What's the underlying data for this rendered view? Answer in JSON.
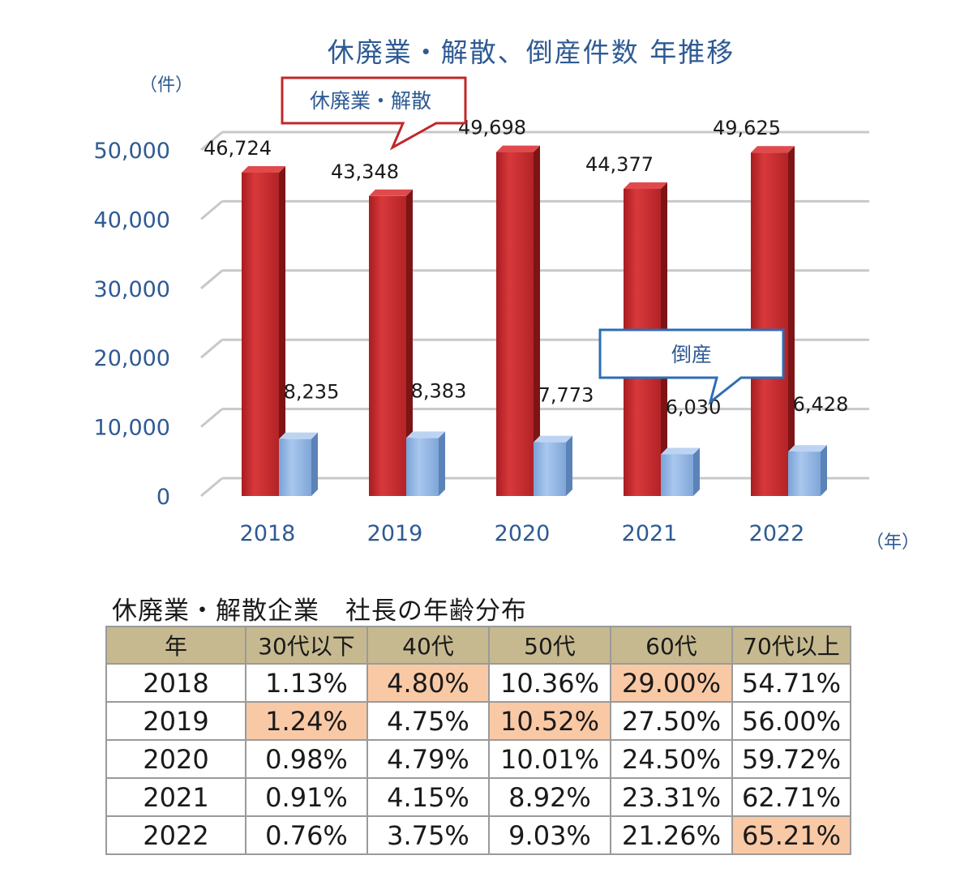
{
  "chart_data": {
    "type": "bar",
    "title": "休廃業・解散、倒産件数 年推移",
    "y_unit": "（件）",
    "x_unit": "（年）",
    "categories": [
      "2018",
      "2019",
      "2020",
      "2021",
      "2022"
    ],
    "series": [
      {
        "name": "休廃業・解散",
        "values": [
          46724,
          43348,
          49698,
          44377,
          49625
        ],
        "labels": [
          "46,724",
          "43,348",
          "49,698",
          "44,377",
          "49,625"
        ],
        "color": "#c0282a"
      },
      {
        "name": "倒産",
        "values": [
          8235,
          8383,
          7773,
          6030,
          6428
        ],
        "labels": [
          "8,235",
          "8,383",
          "7,773",
          "6,030",
          "6,428"
        ],
        "color": "#8db4e3"
      }
    ],
    "ylim": [
      0,
      50000
    ],
    "yticks": [
      "0",
      "10,000",
      "20,000",
      "30,000",
      "40,000",
      "50,000"
    ],
    "grid": true
  },
  "table": {
    "title": "休廃業・解散企業　社長の年齢分布",
    "headers": [
      "年",
      "30代以下",
      "40代",
      "50代",
      "60代",
      "70代以上"
    ],
    "rows": [
      [
        "2018",
        "1.13%",
        "4.80%",
        "10.36%",
        "29.00%",
        "54.71%"
      ],
      [
        "2019",
        "1.24%",
        "4.75%",
        "10.52%",
        "27.50%",
        "56.00%"
      ],
      [
        "2020",
        "0.98%",
        "4.79%",
        "10.01%",
        "24.50%",
        "59.72%"
      ],
      [
        "2021",
        "0.91%",
        "4.15%",
        "8.92%",
        "23.31%",
        "62.71%"
      ],
      [
        "2022",
        "0.76%",
        "3.75%",
        "9.03%",
        "21.26%",
        "65.21%"
      ]
    ],
    "highlighted": [
      [
        0,
        2
      ],
      [
        0,
        4
      ],
      [
        1,
        1
      ],
      [
        1,
        3
      ],
      [
        4,
        5
      ]
    ],
    "highlight_color": "#f9c9a6",
    "header_color": "#c6b98f"
  }
}
